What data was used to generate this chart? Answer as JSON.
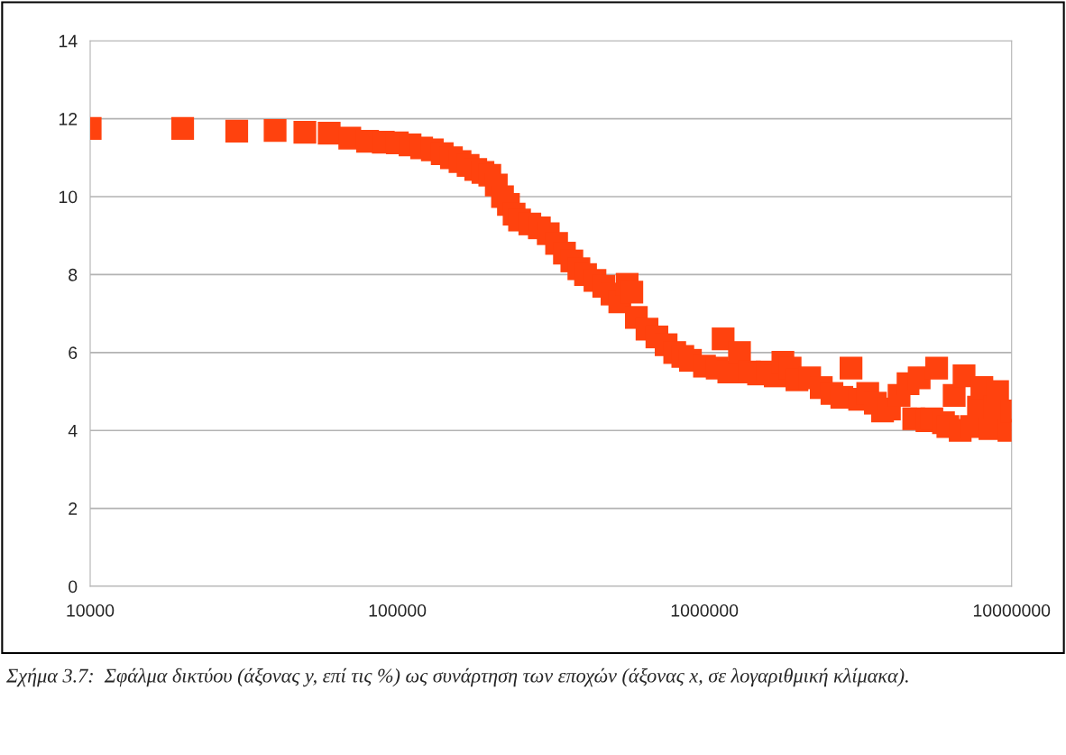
{
  "chart_data": {
    "type": "scatter",
    "marker": "square",
    "log": "x",
    "grid": "y",
    "xlim": [
      10000,
      10000000
    ],
    "xticks": [
      10000,
      100000,
      1000000,
      10000000
    ],
    "ylim": [
      0,
      14
    ],
    "yticks": [
      0,
      2,
      4,
      6,
      8,
      10,
      12,
      14
    ],
    "annotations": [
      "Σχήμα 3.7:  Σφάλμα δικτύου (άξονας y, επί τις %) ως συνάρτηση των εποχών (άξονας x, σε λογαριθμική κλίμακα)."
    ],
    "series": [
      {
        "color": "#ff420e",
        "x": [
          10000,
          20000,
          30000,
          40000,
          50000,
          60000,
          70000,
          80000,
          90000,
          100000,
          110000,
          120000,
          130000,
          140000,
          150000,
          160000,
          170000,
          180000,
          190000,
          200000,
          210000,
          220000,
          230000,
          240000,
          250000,
          270000,
          290000,
          310000,
          330000,
          350000,
          370000,
          390000,
          410000,
          440000,
          470000,
          500000,
          530000,
          560000,
          580000,
          600000,
          650000,
          700000,
          750000,
          800000,
          850000,
          900000,
          1000000,
          1100000,
          1150000,
          1200000,
          1300000,
          1400000,
          1500000,
          1600000,
          1700000,
          1800000,
          1900000,
          2000000,
          2200000,
          2400000,
          2600000,
          2800000,
          3000000,
          3200000,
          3400000,
          3600000,
          3800000,
          4000000,
          4300000,
          4600000,
          4800000,
          5000000,
          5300000,
          5500000,
          5700000,
          6000000,
          6200000,
          6500000,
          6800000,
          7000000,
          7400000,
          7800000,
          8000000,
          8500000,
          8800000,
          9000000,
          9800000,
          10000000
        ],
        "values": [
          11.75,
          11.75,
          11.68,
          11.7,
          11.65,
          11.63,
          11.5,
          11.42,
          11.4,
          11.38,
          11.33,
          11.25,
          11.2,
          11.1,
          11.0,
          10.9,
          10.8,
          10.7,
          10.62,
          10.55,
          10.3,
          10.0,
          9.8,
          9.55,
          9.4,
          9.3,
          9.2,
          9.05,
          8.8,
          8.55,
          8.35,
          8.15,
          8.0,
          7.85,
          7.7,
          7.5,
          7.3,
          7.75,
          7.55,
          6.9,
          6.6,
          6.4,
          6.2,
          6.0,
          5.9,
          5.8,
          5.65,
          5.6,
          6.35,
          5.5,
          6.0,
          5.5,
          5.45,
          5.5,
          5.4,
          5.75,
          5.6,
          5.3,
          5.35,
          5.1,
          4.95,
          4.85,
          5.6,
          4.8,
          4.95,
          4.7,
          4.5,
          4.55,
          4.9,
          5.2,
          4.3,
          5.35,
          4.25,
          4.3,
          5.6,
          4.2,
          4.1,
          4.9,
          4.0,
          5.4,
          4.1,
          4.6,
          5.1,
          4.05,
          4.6,
          5.0,
          4.0,
          4.5
        ]
      }
    ]
  }
}
